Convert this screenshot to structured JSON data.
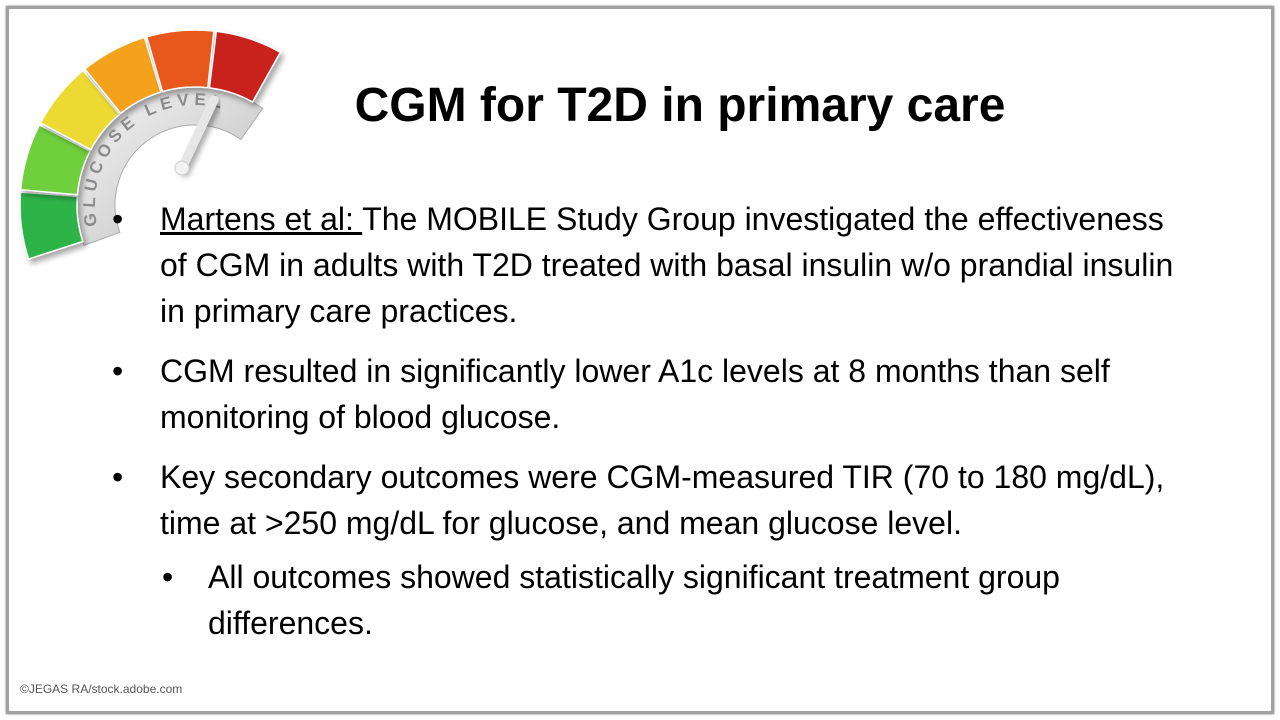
{
  "slide": {
    "title": "CGM for T2D in primary care",
    "gauge_label": "GLUCOSE LEVEL",
    "bullets": [
      {
        "lead": "Martens et al: ",
        "text": "The MOBILE Study Group investigated the effectiveness of CGM in adults with T2D treated with basal insulin w/o prandial insulin in primary care practices."
      },
      {
        "text": "CGM resulted in significantly lower A1c levels at 8 months than self monitoring of blood glucose."
      },
      {
        "text": "Key secondary outcomes were CGM-measured TIR (70 to 180 mg/dL), time at >250 mg/dL for glucose, and mean glucose level."
      }
    ],
    "sub_bullet": "All outcomes showed statistically significant treatment group differences.",
    "credit": "©JEGAS RA/stock.adobe.com"
  }
}
